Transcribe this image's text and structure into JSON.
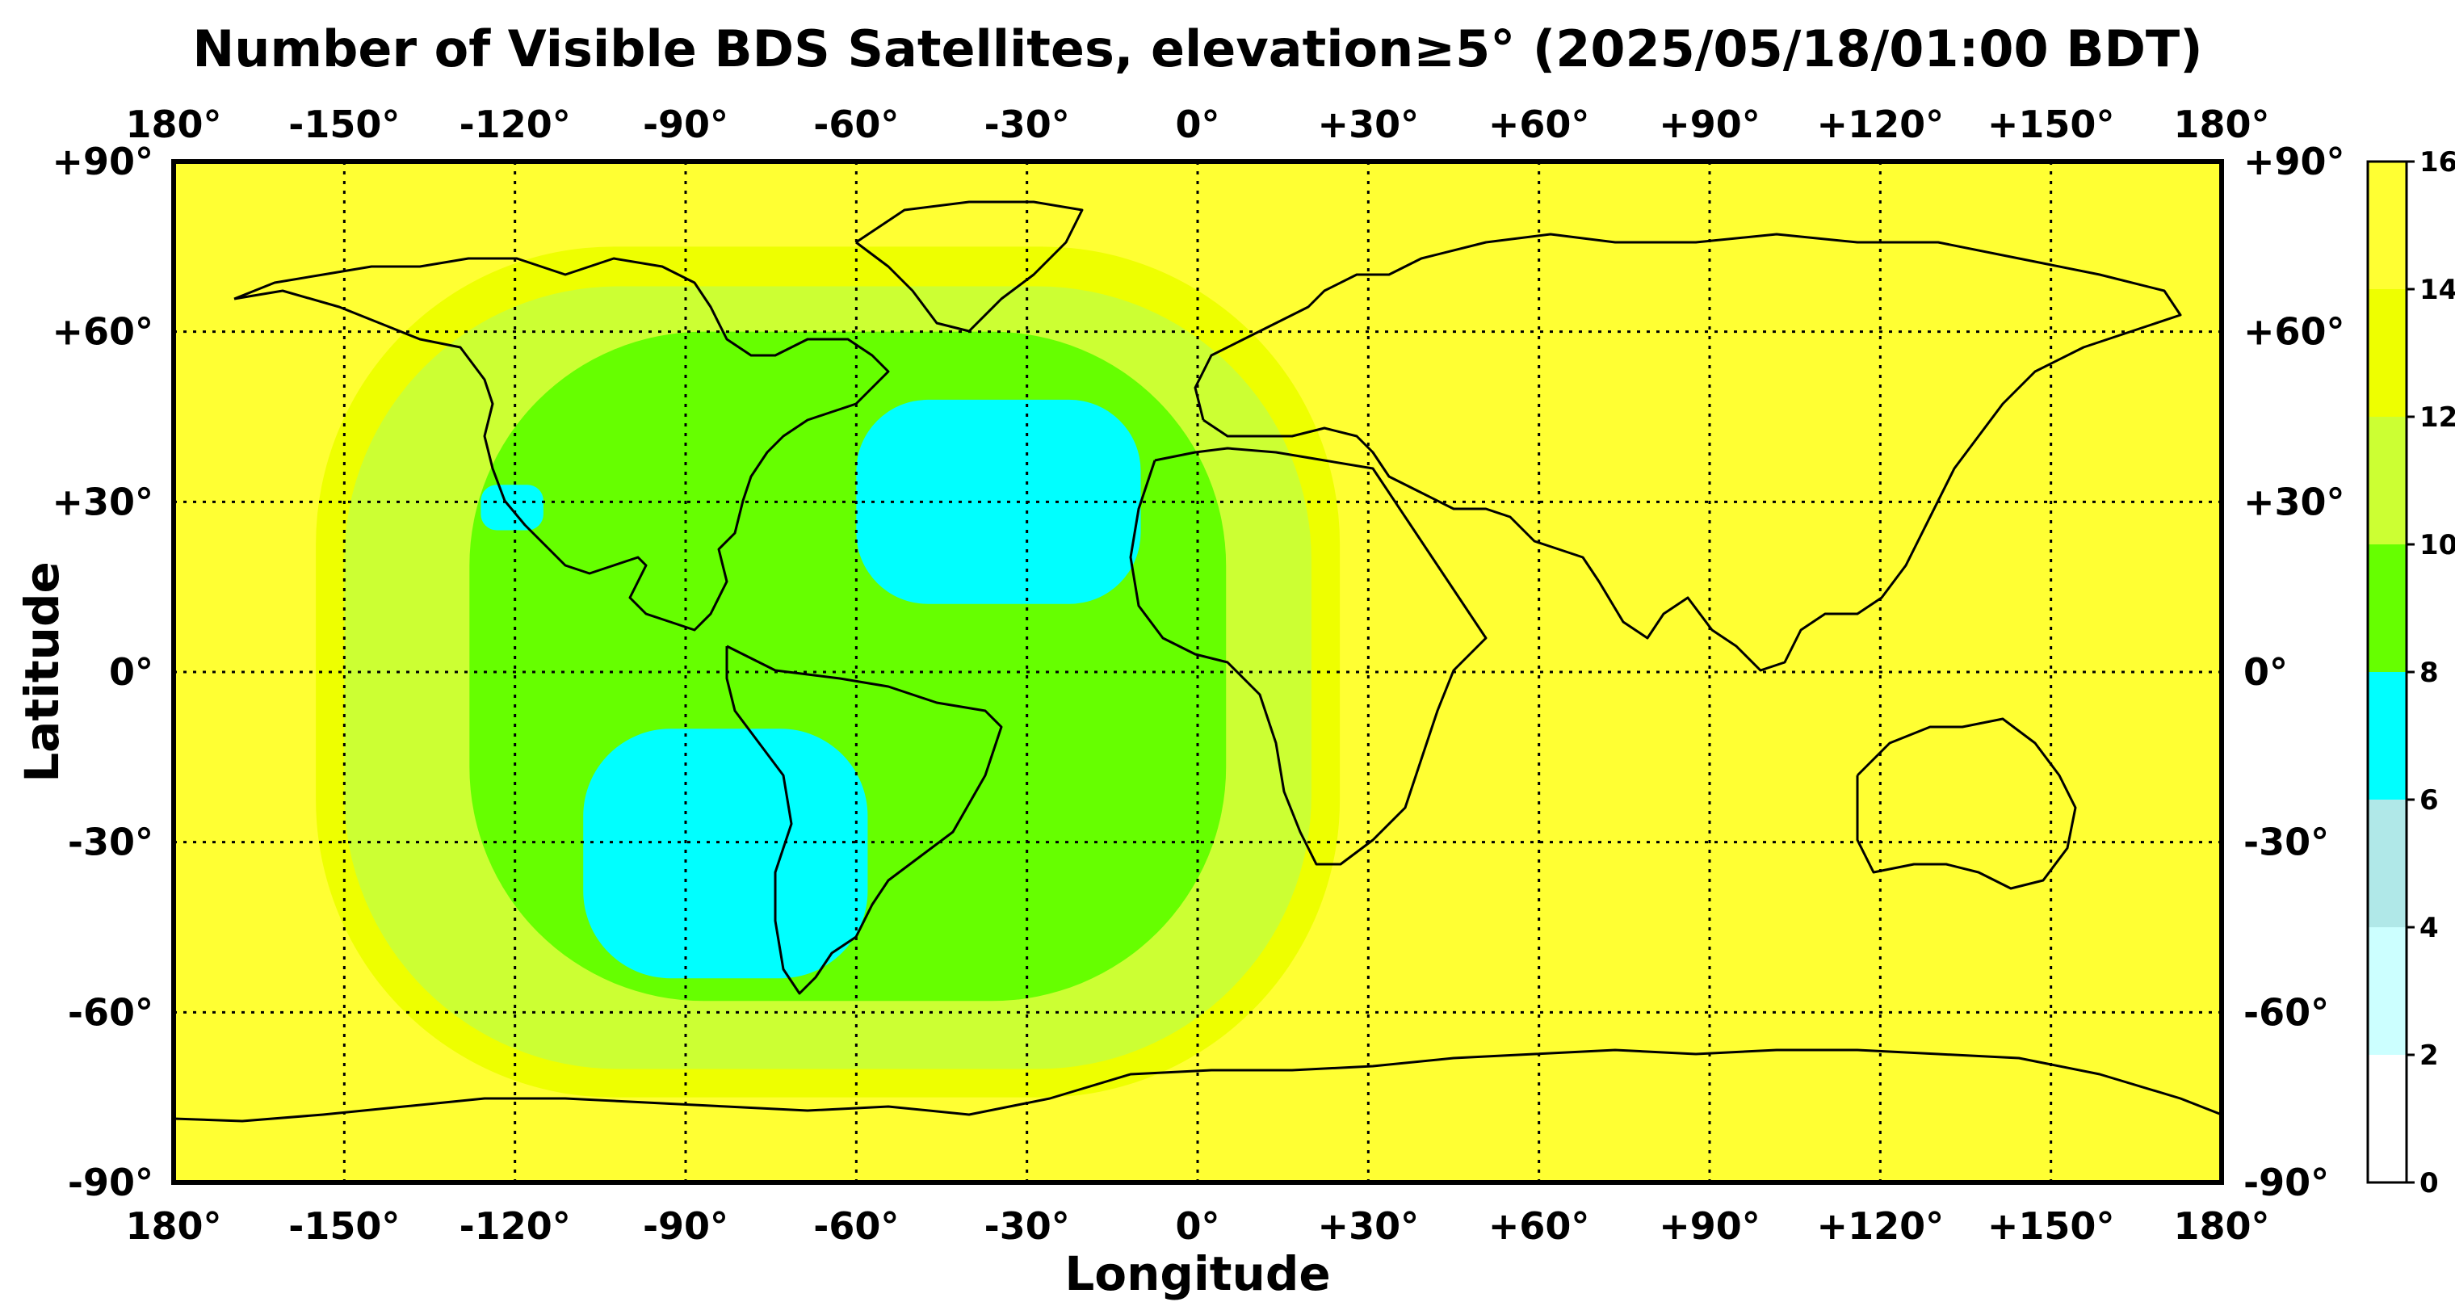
{
  "title": "Number of Visible BDS Satellites, elevation≥5° (2025/05/18/01:00 BDT)",
  "xlabel": "Longitude",
  "ylabel": "Latitude",
  "lon_ticks": [
    {
      "value": -180,
      "label": "180°"
    },
    {
      "value": -150,
      "label": "-150°"
    },
    {
      "value": -120,
      "label": "-120°"
    },
    {
      "value": -90,
      "label": "-90°"
    },
    {
      "value": -60,
      "label": "-60°"
    },
    {
      "value": -30,
      "label": "-30°"
    },
    {
      "value": 0,
      "label": "0°"
    },
    {
      "value": 30,
      "label": "+30°"
    },
    {
      "value": 60,
      "label": "+60°"
    },
    {
      "value": 90,
      "label": "+90°"
    },
    {
      "value": 120,
      "label": "+120°"
    },
    {
      "value": 150,
      "label": "+150°"
    },
    {
      "value": 180,
      "label": "180°"
    }
  ],
  "lat_ticks": [
    {
      "value": 90,
      "label": "+90°"
    },
    {
      "value": 60,
      "label": "+60°"
    },
    {
      "value": 30,
      "label": "+30°"
    },
    {
      "value": 0,
      "label": "0°"
    },
    {
      "value": -30,
      "label": "-30°"
    },
    {
      "value": -60,
      "label": "-60°"
    },
    {
      "value": -90,
      "label": "-90°"
    }
  ],
  "colorbar": {
    "ticks": [
      "0",
      "2",
      "4",
      "6",
      "8",
      "10",
      "12",
      "14",
      "16"
    ],
    "levels": [
      {
        "from": 0,
        "to": 2,
        "color": "#ffffff"
      },
      {
        "from": 2,
        "to": 4,
        "color": "#ccffff"
      },
      {
        "from": 4,
        "to": 6,
        "color": "#b0e8e8"
      },
      {
        "from": 6,
        "to": 8,
        "color": "#00ffff"
      },
      {
        "from": 8,
        "to": 10,
        "color": "#66ff00"
      },
      {
        "from": 10,
        "to": 12,
        "color": "#ccff33"
      },
      {
        "from": 12,
        "to": 14,
        "color": "#eeff00"
      },
      {
        "from": 14,
        "to": 16,
        "color": "#ffff33"
      }
    ]
  },
  "map_data": {
    "background_level": "14-16",
    "regions": [
      {
        "level": "12-14",
        "lon": [
          -155,
          25
        ],
        "lat": [
          -75,
          75
        ]
      },
      {
        "level": "10-12",
        "lon": [
          -150,
          20
        ],
        "lat": [
          -70,
          68
        ]
      },
      {
        "level": "8-10",
        "lon": [
          -128,
          5
        ],
        "lat": [
          -58,
          60
        ]
      },
      {
        "level": "6-8",
        "lon": [
          -60,
          -10
        ],
        "lat": [
          12,
          48
        ]
      },
      {
        "level": "6-8",
        "lon": [
          -108,
          -58
        ],
        "lat": [
          -54,
          -10
        ]
      },
      {
        "level": "6-8",
        "lon": [
          -126,
          -115
        ],
        "lat": [
          25,
          33
        ]
      }
    ]
  }
}
